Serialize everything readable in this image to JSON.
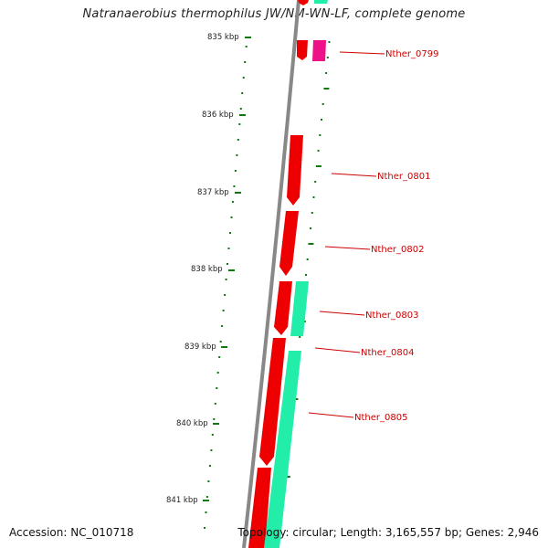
{
  "title": "Natranaerobius thermophilus JW/NM-WN-LF, complete genome",
  "accession": "Accession: NC_010718",
  "summary": "Topology: circular; Length: 3,165,557 bp; Genes: 2,946",
  "scale_labels": [
    "835 kbp",
    "836 kbp",
    "837 kbp",
    "838 kbp",
    "839 kbp",
    "840 kbp",
    "841 kbp"
  ],
  "gene_labels": [
    "Nther_0799",
    "Nther_0801",
    "Nther_0802",
    "Nther_0803",
    "Nther_0804",
    "Nther_0805"
  ],
  "colors": {
    "forward_gene": "#ee0000",
    "reverse_gene": "#22eeaa",
    "highlight_gene": "#ee1188",
    "backbone": "#888888",
    "ticks": "#117711",
    "label": "#cc0000"
  }
}
